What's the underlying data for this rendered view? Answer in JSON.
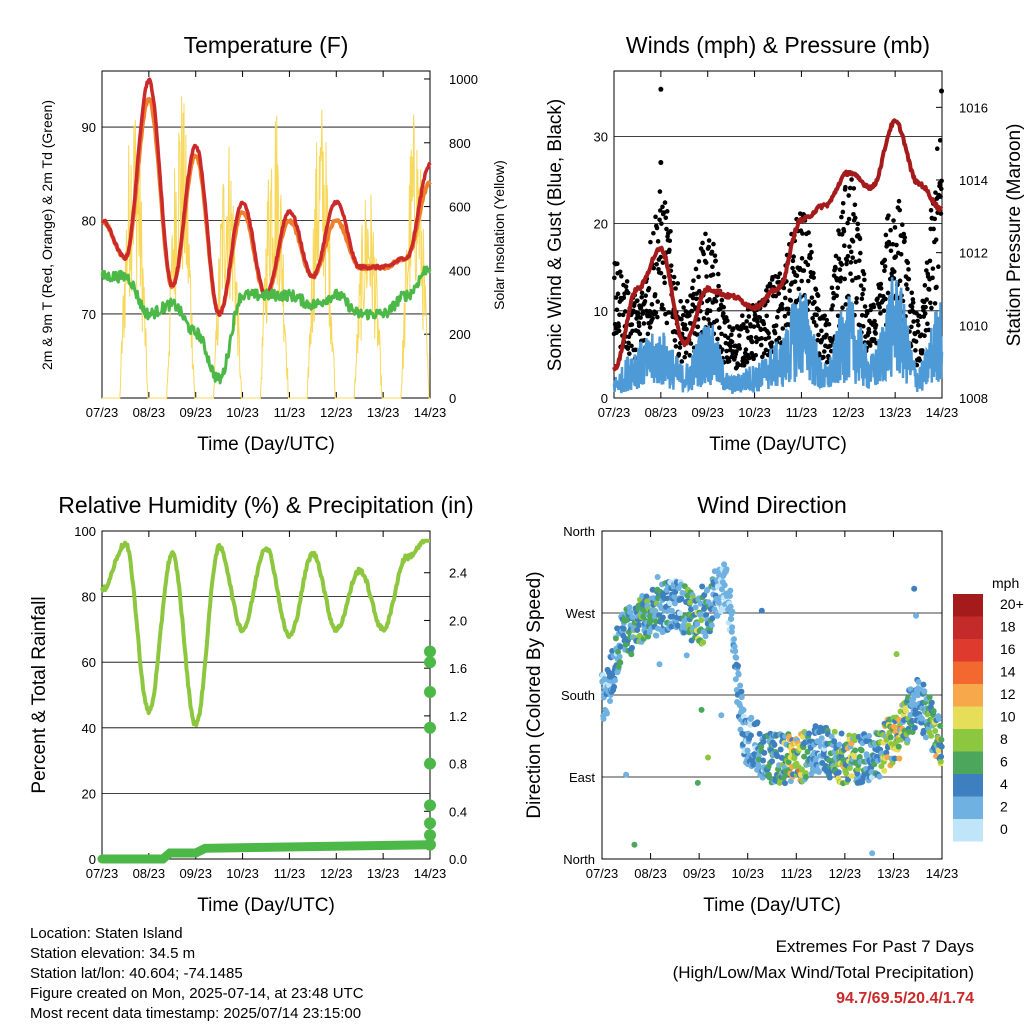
{
  "x_ticks": [
    "07/23",
    "08/23",
    "09/23",
    "10/23",
    "11/23",
    "12/23",
    "13/23",
    "14/23"
  ],
  "xlabel": "Time (Day/UTC)",
  "temperature": {
    "title": "Temperature (F)",
    "ylabel_left": "2m & 9m T (Red, Orange) & 2m Td (Green)",
    "ylabel_right": "Solar Insolation (Yellow)",
    "left_ticks": [
      "70",
      "80",
      "90"
    ],
    "right_ticks": [
      "0",
      "200",
      "400",
      "600",
      "800",
      "1000"
    ]
  },
  "winds": {
    "title": "Winds (mph) & Pressure (mb)",
    "ylabel_left": "Sonic Wind & Gust (Blue, Black)",
    "ylabel_right": "Station Pressure (Maroon)",
    "left_ticks": [
      "0",
      "10",
      "20",
      "30"
    ],
    "right_ticks": [
      "1008",
      "1010",
      "1012",
      "1014",
      "1016"
    ]
  },
  "humidity": {
    "title": "Relative Humidity (%) & Precipitation (in)",
    "ylabel_left": "Percent & Total Rainfall",
    "left_ticks": [
      "0",
      "20",
      "40",
      "60",
      "80",
      "100"
    ],
    "right_ticks": [
      "0.0",
      "0.4",
      "0.8",
      "1.2",
      "1.6",
      "2.0",
      "2.4"
    ]
  },
  "direction": {
    "title": "Wind Direction",
    "ylabel_left": "Direction (Colored By Speed)",
    "left_ticks": [
      "North",
      "East",
      "South",
      "West",
      "North"
    ],
    "legend_title": "mph",
    "legend_labels": [
      "20+",
      "18",
      "16",
      "14",
      "12",
      "10",
      "8",
      "6",
      "4",
      "2",
      "0"
    ],
    "legend_colors": [
      "#a51b1b",
      "#c42a2a",
      "#df3a2e",
      "#f2682e",
      "#f7a84a",
      "#e6de58",
      "#8dc63f",
      "#4ca75c",
      "#3d7fbf",
      "#6fb1e0",
      "#c1e5f8"
    ]
  },
  "info": {
    "location": "Location: Staten Island",
    "elevation": "Station elevation: 34.5 m",
    "latlon": "Station lat/lon: 40.604; -74.1485",
    "created": "Figure created on Mon, 2025-07-14, at 23:48 UTC",
    "recent": "Most recent data timestamp: 2025/07/14 23:15:00"
  },
  "extremes": {
    "line1": "Extremes For Past 7 Days",
    "line2": "(High/Low/Max Wind/Total Precipitation)",
    "values": "94.7/69.5/20.4/1.74"
  },
  "chart_data": [
    {
      "type": "line",
      "title": "Temperature (F)",
      "xlabel": "Time (Day/UTC)",
      "ylabel": "2m & 9m T (Red, Orange) & 2m Td (Green)",
      "y2label": "Solar Insolation (Yellow)",
      "x": [
        7.0,
        7.5,
        8.0,
        8.5,
        9.0,
        9.5,
        10.0,
        10.5,
        11.0,
        11.5,
        12.0,
        12.5,
        13.0,
        13.5,
        14.0
      ],
      "ylim": [
        61,
        96
      ],
      "y2lim": [
        0,
        1025
      ],
      "series": [
        {
          "name": "2m T",
          "color": "#cc2a2a",
          "values": [
            80,
            76,
            95,
            73,
            88,
            70,
            82,
            72,
            81,
            74,
            82,
            75,
            75,
            76,
            86
          ]
        },
        {
          "name": "9m T",
          "color": "#f07f2a",
          "values": [
            80,
            76,
            93,
            73,
            87,
            70,
            81,
            72,
            80,
            74,
            80,
            75,
            75,
            76,
            84
          ]
        },
        {
          "name": "2m Td",
          "color": "#4cb848",
          "values": [
            74,
            74,
            70,
            71,
            68,
            63,
            72,
            72,
            72,
            71,
            72,
            70,
            70,
            72,
            75
          ]
        },
        {
          "name": "Solar Insolation",
          "color": "#f7d85b",
          "axis": "right",
          "values": [
            0,
            0,
            980,
            0,
            1000,
            0,
            850,
            0,
            970,
            0,
            950,
            0,
            700,
            0,
            920
          ]
        }
      ]
    },
    {
      "type": "scatter",
      "title": "Winds (mph) & Pressure (mb)",
      "xlabel": "Time (Day/UTC)",
      "ylabel": "Sonic Wind & Gust (Blue, Black)",
      "y2label": "Station Pressure (Maroon)",
      "x": [
        7.0,
        7.5,
        8.0,
        8.5,
        9.0,
        9.5,
        10.0,
        10.5,
        11.0,
        11.5,
        12.0,
        12.5,
        13.0,
        13.5,
        14.0
      ],
      "ylim": [
        0,
        37.5
      ],
      "y2lim": [
        1008,
        1017
      ],
      "series": [
        {
          "name": "Sonic Wind",
          "color": "#4e9ad6",
          "values": [
            2,
            5,
            6,
            3,
            7,
            2,
            3,
            5,
            10,
            3,
            9,
            4,
            11,
            3,
            9
          ]
        },
        {
          "name": "Gust",
          "color": "#000000",
          "values": [
            13,
            10,
            20,
            9,
            16,
            7,
            9,
            12,
            18,
            8,
            22,
            9,
            20,
            8,
            26
          ]
        },
        {
          "name": "Station Pressure",
          "color": "#a51b1b",
          "axis": "right",
          "values": [
            1008.8,
            1011,
            1012.1,
            1009.5,
            1011,
            1010.8,
            1010.5,
            1011,
            1012.9,
            1013.3,
            1014.2,
            1013.8,
            1015.6,
            1013.9,
            1013.2
          ]
        }
      ]
    },
    {
      "type": "line",
      "title": "Relative Humidity (%) & Precipitation (in)",
      "xlabel": "Time (Day/UTC)",
      "ylabel": "Percent & Total Rainfall",
      "x": [
        7.0,
        7.5,
        8.0,
        8.5,
        9.0,
        9.5,
        10.0,
        10.5,
        11.0,
        11.5,
        12.0,
        12.5,
        13.0,
        13.5,
        14.0
      ],
      "ylim": [
        0,
        100
      ],
      "y2lim": [
        0,
        2.75
      ],
      "series": [
        {
          "name": "Relative Humidity",
          "color": "#8dc63f",
          "values": [
            82,
            96,
            45,
            93,
            41,
            95,
            70,
            95,
            68,
            93,
            70,
            88,
            70,
            92,
            98
          ]
        },
        {
          "name": "Total Precipitation",
          "color": "#4cb848",
          "axis": "right",
          "values": [
            0,
            0,
            0,
            0.05,
            0.05,
            0.1,
            0.1,
            0.1,
            0.12,
            0.12,
            0.12,
            0.12,
            0.12,
            0.12,
            1.74
          ]
        }
      ]
    },
    {
      "type": "scatter",
      "title": "Wind Direction",
      "xlabel": "Time (Day/UTC)",
      "ylabel": "Direction (Colored By Speed)",
      "x": [
        7.0,
        7.5,
        8.0,
        8.5,
        9.0,
        9.5,
        10.0,
        10.5,
        11.0,
        11.5,
        12.0,
        12.5,
        13.0,
        13.5,
        14.0
      ],
      "ylim": [
        0,
        360
      ],
      "series": [
        {
          "name": "Direction",
          "values": [
            180,
            250,
            270,
            280,
            260,
            300,
            130,
            110,
            110,
            120,
            110,
            110,
            130,
            170,
            130
          ]
        }
      ],
      "colorbar": {
        "label": "mph",
        "ticks": [
          0,
          2,
          4,
          6,
          8,
          10,
          12,
          14,
          16,
          18,
          20
        ]
      }
    }
  ]
}
